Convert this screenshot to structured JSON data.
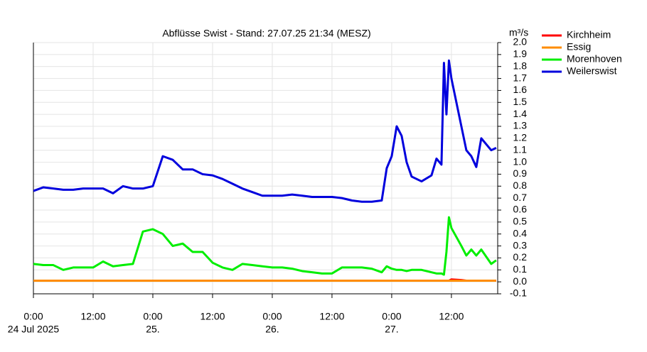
{
  "chart_data": {
    "type": "line",
    "title": "Abflüsse Swist - Stand: 27.07.25 21:34 (MESZ)",
    "y_label": "m³/s",
    "x": [
      0,
      2,
      4,
      6,
      8,
      10,
      12,
      14,
      16,
      18,
      20,
      22,
      24,
      26,
      28,
      30,
      32,
      34,
      36,
      38,
      40,
      42,
      44,
      46,
      48,
      50,
      52,
      54,
      56,
      58,
      60,
      62,
      64,
      66,
      68,
      70,
      71,
      72,
      73,
      74,
      75,
      76,
      78,
      80,
      81,
      82,
      82.5,
      83,
      83.5,
      84,
      86,
      87,
      88,
      89,
      90,
      92,
      93
    ],
    "xlim": [
      0,
      93.3
    ],
    "xticks": [
      {
        "value": 0,
        "label": "0:00"
      },
      {
        "value": 12,
        "label": "12:00"
      },
      {
        "value": 24,
        "label": "0:00"
      },
      {
        "value": 36,
        "label": "12:00"
      },
      {
        "value": 48,
        "label": "0:00"
      },
      {
        "value": 60,
        "label": "12:00"
      },
      {
        "value": 72,
        "label": "0:00"
      },
      {
        "value": 84,
        "label": "12:00"
      }
    ],
    "xdate_labels": [
      {
        "value": 0,
        "label": "24 Jul 2025"
      },
      {
        "value": 24,
        "label": "25."
      },
      {
        "value": 48,
        "label": "26."
      },
      {
        "value": 72,
        "label": "27."
      }
    ],
    "ylim": [
      -0.1,
      2.0
    ],
    "yticks": [
      -0.1,
      {
        "value": 0,
        "label": "0.0"
      },
      0.1,
      0.2,
      0.3,
      0.4,
      0.5,
      0.6,
      0.7,
      0.8,
      0.9,
      {
        "value": 1,
        "label": "1.0"
      },
      1.1,
      1.2,
      1.3,
      1.4,
      1.5,
      1.6,
      1.7,
      1.8,
      1.9,
      {
        "value": 2,
        "label": "2.0"
      }
    ],
    "grid": true,
    "legend": "upper right outside",
    "series": [
      {
        "name": "Kirchheim",
        "color": "#ff0000",
        "values": [
          0.01,
          0.01,
          0.01,
          0.01,
          0.01,
          0.01,
          0.01,
          0.01,
          0.01,
          0.01,
          0.01,
          0.01,
          0.01,
          0.01,
          0.01,
          0.01,
          0.01,
          0.01,
          0.01,
          0.01,
          0.01,
          0.01,
          0.01,
          0.01,
          0.01,
          0.01,
          0.01,
          0.01,
          0.01,
          0.01,
          0.01,
          0.01,
          0.01,
          0.01,
          0.01,
          0.01,
          0.01,
          0.01,
          0.01,
          0.01,
          0.01,
          0.01,
          0.01,
          0.01,
          0.01,
          0.01,
          0.01,
          0.01,
          0.01,
          0.02,
          0.015,
          0.01,
          0.01,
          0.01,
          0.01,
          0.01,
          0.01
        ]
      },
      {
        "name": "Essig",
        "color": "#ff8c00",
        "values": [
          0.01,
          0.01,
          0.01,
          0.01,
          0.01,
          0.01,
          0.01,
          0.01,
          0.01,
          0.01,
          0.01,
          0.01,
          0.01,
          0.01,
          0.01,
          0.01,
          0.01,
          0.01,
          0.01,
          0.01,
          0.01,
          0.01,
          0.01,
          0.01,
          0.01,
          0.01,
          0.01,
          0.01,
          0.01,
          0.01,
          0.01,
          0.01,
          0.01,
          0.01,
          0.01,
          0.01,
          0.01,
          0.01,
          0.01,
          0.01,
          0.01,
          0.01,
          0.01,
          0.01,
          0.01,
          0.01,
          0.01,
          0.01,
          0.01,
          0.01,
          0.01,
          0.01,
          0.01,
          0.01,
          0.01,
          0.01,
          0.01
        ]
      },
      {
        "name": "Morenhoven",
        "color": "#00ee00",
        "values": [
          0.15,
          0.14,
          0.14,
          0.1,
          0.12,
          0.12,
          0.12,
          0.17,
          0.13,
          0.14,
          0.15,
          0.42,
          0.44,
          0.4,
          0.3,
          0.32,
          0.25,
          0.25,
          0.16,
          0.12,
          0.1,
          0.15,
          0.14,
          0.13,
          0.12,
          0.12,
          0.11,
          0.09,
          0.08,
          0.07,
          0.07,
          0.12,
          0.12,
          0.12,
          0.11,
          0.08,
          0.13,
          0.11,
          0.1,
          0.1,
          0.09,
          0.1,
          0.1,
          0.08,
          0.07,
          0.07,
          0.06,
          0.25,
          0.54,
          0.45,
          0.3,
          0.22,
          0.27,
          0.22,
          0.27,
          0.15,
          0.18
        ]
      },
      {
        "name": "Weilerswist",
        "color": "#0000dd",
        "values": [
          0.76,
          0.79,
          0.78,
          0.77,
          0.77,
          0.78,
          0.78,
          0.78,
          0.74,
          0.8,
          0.78,
          0.78,
          0.8,
          1.05,
          1.02,
          0.94,
          0.94,
          0.9,
          0.89,
          0.86,
          0.82,
          0.78,
          0.75,
          0.72,
          0.72,
          0.72,
          0.73,
          0.72,
          0.71,
          0.71,
          0.71,
          0.7,
          0.68,
          0.67,
          0.67,
          0.68,
          0.95,
          1.05,
          1.3,
          1.22,
          1.0,
          0.88,
          0.84,
          0.89,
          1.03,
          0.98,
          1.83,
          1.4,
          1.85,
          1.7,
          1.3,
          1.1,
          1.05,
          0.96,
          1.2,
          1.1,
          1.12
        ]
      }
    ]
  }
}
